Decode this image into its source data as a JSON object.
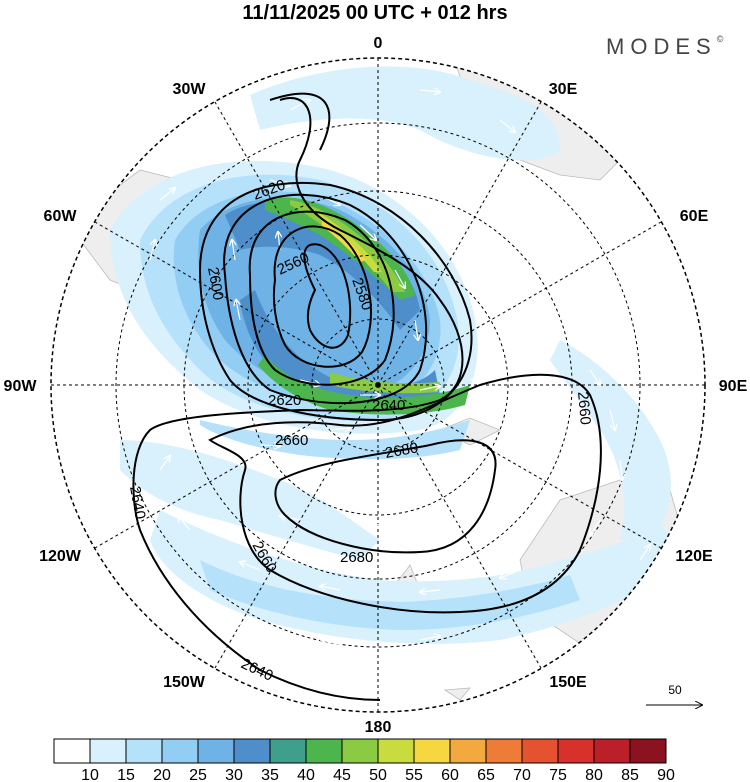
{
  "title": "11/11/2025  00 UTC  + 012 hrs",
  "brand": "MODES",
  "brand_mark": "©",
  "map": {
    "projection": "south polar stereographic",
    "longitude_labels": {
      "top": "0",
      "top_right": "30E",
      "right_upper": "60E",
      "right": "90E",
      "right_lower": "120E",
      "bottom_right": "150E",
      "bottom": "180",
      "bottom_left": "150W",
      "left_lower": "120W",
      "left": "90W",
      "left_upper": "60W",
      "top_left": "30W"
    },
    "contour_labels": {
      "c2560": "2560",
      "c2580": "2580",
      "c2600": "2600",
      "c2620a": "2620",
      "c2620b": "2620",
      "c2640a": "2640",
      "c2640b": "2640",
      "c2640c": "2640",
      "c2660a": "2660",
      "c2660b": "2660",
      "c2660c": "2660",
      "c2680a": "2680",
      "c2680b": "2680"
    },
    "vector_reference": {
      "label": "50"
    }
  },
  "colorbar": {
    "ticks": [
      "10",
      "15",
      "20",
      "25",
      "30",
      "35",
      "40",
      "45",
      "50",
      "55",
      "60",
      "65",
      "70",
      "75",
      "80",
      "85",
      "90"
    ],
    "colors": [
      "#ffffff",
      "#d9f1fd",
      "#b5e1fa",
      "#92cdf3",
      "#6fb2e6",
      "#4e8fcb",
      "#3f9f8d",
      "#4cb54e",
      "#8bca43",
      "#c8db3f",
      "#f6d742",
      "#f4a940",
      "#ee7c36",
      "#e5522f",
      "#d8302b",
      "#bb1f2a",
      "#8d1220"
    ]
  }
}
